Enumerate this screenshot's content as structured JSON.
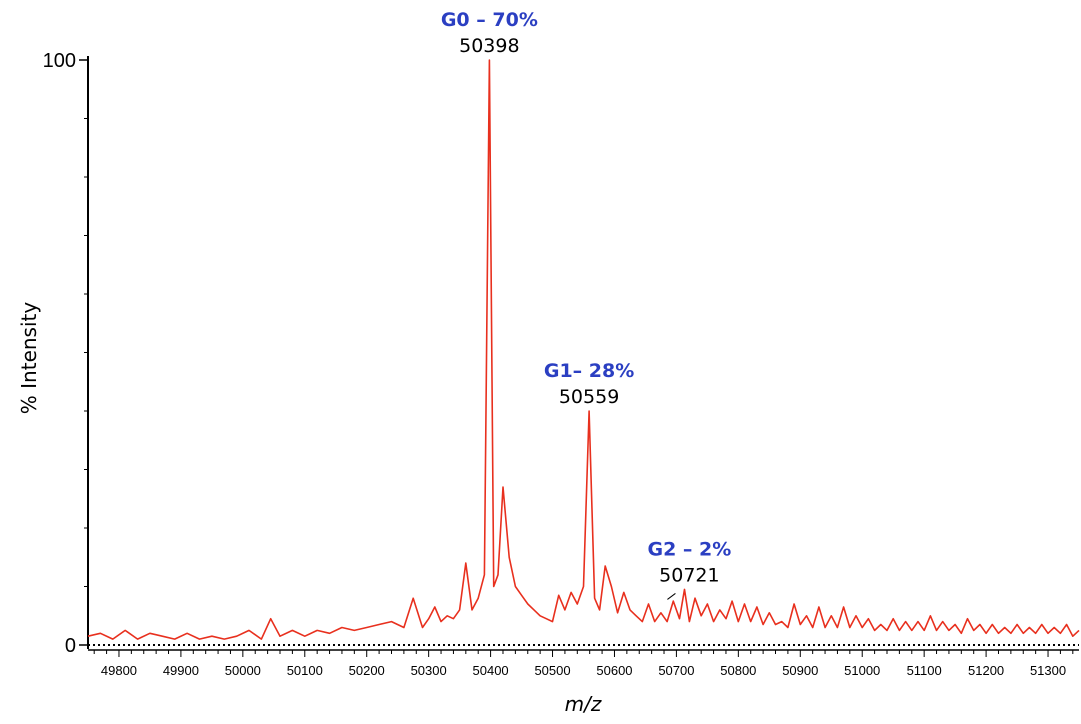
{
  "chart_data": {
    "type": "line",
    "title": "",
    "xlabel": "m/z",
    "ylabel": "% Intensity",
    "xlim": [
      49750,
      51350
    ],
    "ylim": [
      0,
      100
    ],
    "x_ticks": [
      "49800",
      "49900",
      "50000",
      "50100",
      "50200",
      "50300",
      "50400",
      "50500",
      "50600",
      "50700",
      "50800",
      "50900",
      "51000",
      "51100",
      "51200",
      "51300"
    ],
    "y_ticks": [
      "0",
      "100"
    ],
    "line_color": "#e8301e",
    "annotation_color": "#2b3fc2",
    "annotations": [
      {
        "label": "G0 – 70%",
        "mz": "50398",
        "x": 50398,
        "y": 100
      },
      {
        "label": "G1– 28%",
        "mz": "50559",
        "x": 50559,
        "y": 40
      },
      {
        "label": "G2 – 2%",
        "mz": "50721",
        "x": 50721,
        "y": 9.5
      }
    ],
    "series": [
      {
        "x": [
          49750,
          49770,
          49790,
          49810,
          49830,
          49850,
          49870,
          49890,
          49910,
          49930,
          49950,
          49970,
          49990,
          50010,
          50030,
          50045,
          50060,
          50080,
          50100,
          50120,
          50140,
          50160,
          50180,
          50200,
          50220,
          50240,
          50260,
          50275,
          50290,
          50300,
          50310,
          50320,
          50330,
          50340,
          50350,
          50360,
          50370,
          50380,
          50390,
          50398,
          50405,
          50412,
          50420,
          50430,
          50440,
          50450,
          50460,
          50470,
          50480,
          50490,
          50500,
          50510,
          50520,
          50530,
          50540,
          50550,
          50559,
          50568,
          50576,
          50585,
          50595,
          50605,
          50615,
          50625,
          50635,
          50645,
          50655,
          50665,
          50675,
          50685,
          50695,
          50705,
          50713,
          50721,
          50730,
          50740,
          50750,
          50760,
          50770,
          50780,
          50790,
          50800,
          50810,
          50820,
          50830,
          50840,
          50850,
          50860,
          50870,
          50880,
          50890,
          50900,
          50910,
          50920,
          50930,
          50940,
          50950,
          50960,
          50970,
          50980,
          50990,
          51000,
          51010,
          51020,
          51030,
          51040,
          51050,
          51060,
          51070,
          51080,
          51090,
          51100,
          51110,
          51120,
          51130,
          51140,
          51150,
          51160,
          51170,
          51180,
          51190,
          51200,
          51210,
          51220,
          51230,
          51240,
          51250,
          51260,
          51270,
          51280,
          51290,
          51300,
          51310,
          51320,
          51330,
          51340,
          51350
        ],
        "y": [
          1.5,
          2.0,
          1.0,
          2.5,
          1.0,
          2.0,
          1.5,
          1.0,
          2.0,
          1.0,
          1.5,
          1.0,
          1.5,
          2.5,
          1.0,
          4.5,
          1.5,
          2.5,
          1.5,
          2.5,
          2.0,
          3.0,
          2.5,
          3.0,
          3.5,
          4.0,
          3.0,
          8.0,
          3.0,
          4.5,
          6.5,
          4.0,
          5.0,
          4.5,
          6.0,
          14.0,
          6.0,
          8.0,
          12.0,
          100.0,
          10.0,
          12.0,
          27.0,
          15.0,
          10.0,
          8.5,
          7.0,
          6.0,
          5.0,
          4.5,
          4.0,
          8.5,
          6.0,
          9.0,
          7.0,
          10.0,
          40.0,
          8.0,
          6.0,
          13.5,
          10.0,
          5.5,
          9.0,
          6.0,
          5.0,
          4.0,
          7.0,
          4.0,
          5.5,
          4.0,
          7.5,
          4.5,
          9.5,
          4.0,
          8.0,
          5.0,
          7.0,
          4.0,
          6.0,
          4.5,
          7.5,
          4.0,
          7.0,
          4.0,
          6.5,
          3.5,
          5.5,
          3.5,
          4.0,
          3.0,
          7.0,
          3.5,
          5.0,
          3.0,
          6.5,
          3.0,
          5.0,
          3.0,
          6.5,
          3.0,
          5.0,
          3.0,
          4.5,
          2.5,
          3.5,
          2.5,
          4.5,
          2.5,
          4.0,
          2.5,
          4.0,
          2.5,
          5.0,
          2.5,
          4.0,
          2.5,
          3.5,
          2.0,
          4.5,
          2.5,
          3.5,
          2.0,
          3.5,
          2.0,
          3.0,
          2.0,
          3.5,
          2.0,
          3.0,
          2.0,
          3.5,
          2.0,
          3.0,
          2.0,
          3.5,
          1.5,
          2.5
        ]
      }
    ],
    "grid": false,
    "legend": "none"
  }
}
